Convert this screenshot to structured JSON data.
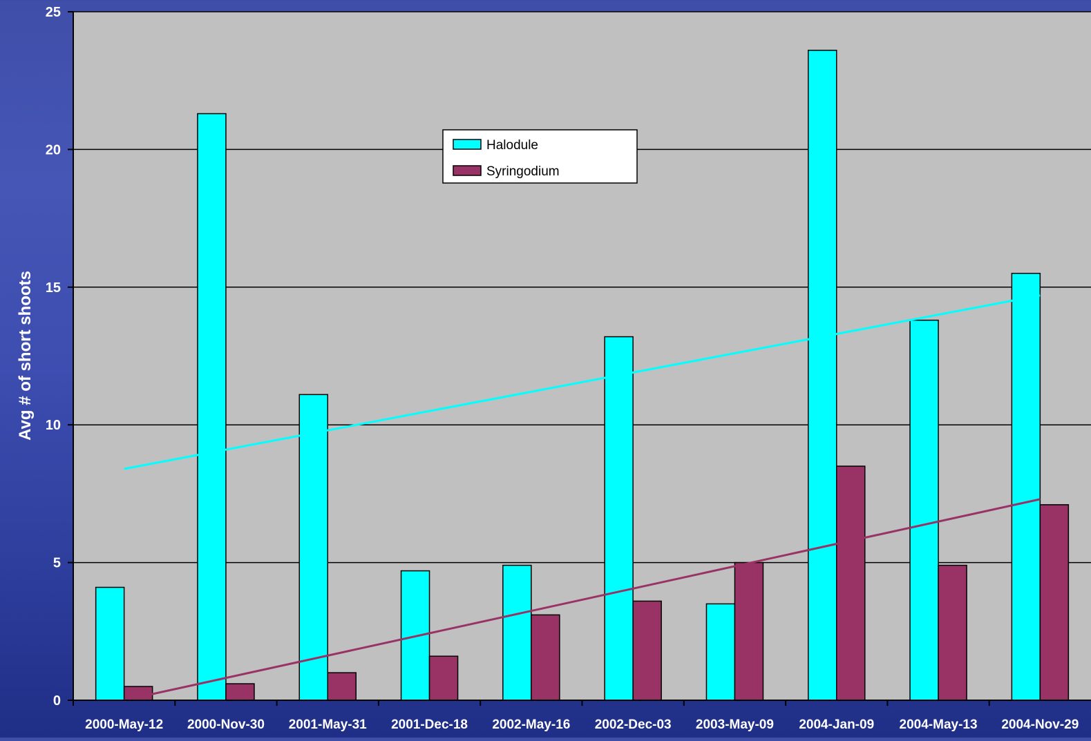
{
  "chart_data": {
    "type": "bar",
    "ylabel": "Avg # of short shoots",
    "xlabel": "",
    "ylim": [
      0,
      25
    ],
    "yticks": [
      0,
      5,
      10,
      15,
      20,
      25
    ],
    "grid": true,
    "legend_position": "top-center",
    "categories": [
      "2000-May-12",
      "2000-Nov-30",
      "2001-May-31",
      "2001-Dec-18",
      "2002-May-16",
      "2002-Dec-03",
      "2003-May-09",
      "2004-Jan-09",
      "2004-May-13",
      "2004-Nov-29"
    ],
    "series": [
      {
        "name": "Halodule",
        "color": "#00ffff",
        "values": [
          4.1,
          21.3,
          11.1,
          4.7,
          4.9,
          13.2,
          3.5,
          23.6,
          13.8,
          15.5
        ]
      },
      {
        "name": "Syringodium",
        "color": "#993366",
        "values": [
          0.5,
          0.6,
          1.0,
          1.6,
          3.1,
          3.6,
          5.0,
          8.5,
          4.9,
          7.1
        ]
      }
    ],
    "trendlines": [
      {
        "series": "Halodule",
        "color": "#00ffff",
        "start": 8.4,
        "end": 14.7
      },
      {
        "series": "Syringodium",
        "color": "#993366",
        "start": 0.0,
        "end": 7.3
      }
    ]
  },
  "colors": {
    "plot_background": "#c0c0c0",
    "gridline": "#000000"
  }
}
